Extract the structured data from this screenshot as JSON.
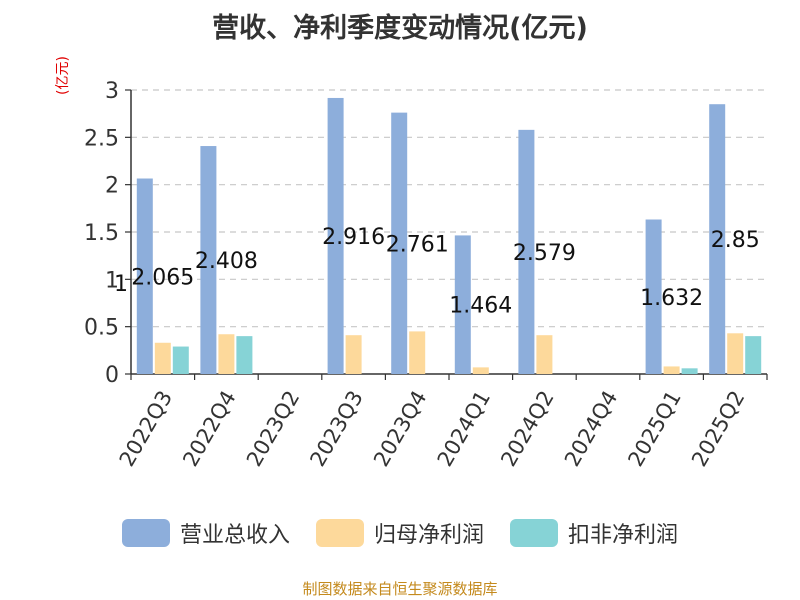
{
  "chart_data": {
    "type": "bar",
    "title": "营收、净利季度变动情况(亿元)",
    "ylabel": "(亿元)",
    "ylim": [
      0,
      3
    ],
    "yticks": [
      "0",
      "0.5",
      "1",
      "1.5",
      "2",
      "2.5",
      "3"
    ],
    "grid": true,
    "legend_position": "bottom",
    "categories": [
      "2022Q3",
      "2022Q4",
      "2023Q2",
      "2023Q3",
      "2023Q4",
      "2024Q1",
      "2024Q2",
      "2024Q4",
      "2025Q1",
      "2025Q2"
    ],
    "series": [
      {
        "name": "营业总收入",
        "color": "#8daedb",
        "values": [
          2.065,
          2.408,
          null,
          2.916,
          2.761,
          1.464,
          2.579,
          null,
          1.632,
          2.85
        ],
        "labels": [
          "2.065",
          "2.408",
          "",
          "2.916",
          "2.761",
          "1.464",
          "2.579",
          "",
          "1.632",
          "2.85"
        ]
      },
      {
        "name": "归母净利润",
        "color": "#fdd99b",
        "values": [
          0.33,
          0.42,
          null,
          0.41,
          0.45,
          0.07,
          0.41,
          null,
          0.08,
          0.43
        ]
      },
      {
        "name": "扣非净利润",
        "color": "#86d3d6",
        "values": [
          0.29,
          0.4,
          null,
          null,
          null,
          null,
          null,
          null,
          0.06,
          0.4
        ]
      }
    ],
    "stray_tick_label": "1"
  },
  "source": "制图数据来自恒生聚源数据库"
}
